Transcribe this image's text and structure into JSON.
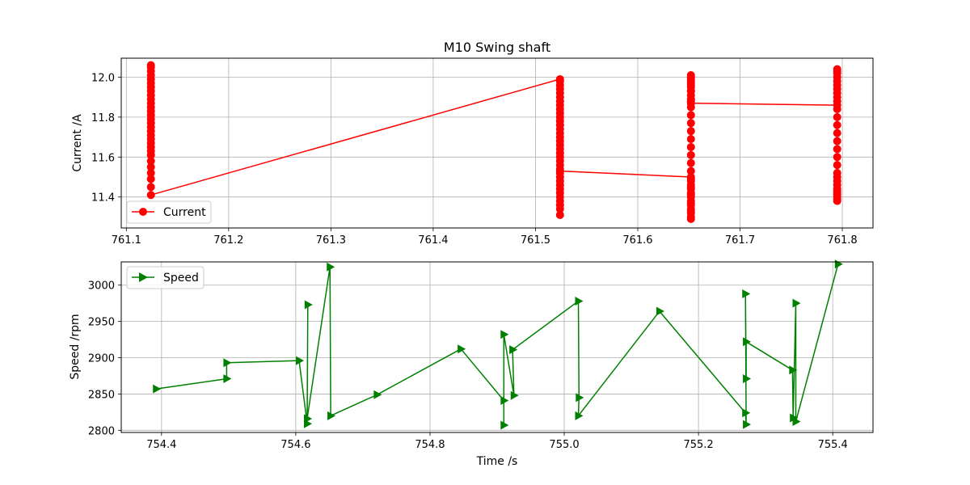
{
  "chart_data": [
    {
      "type": "line",
      "title": "M10 Swing shaft",
      "xlabel": "",
      "ylabel": "Current /A",
      "xlim": [
        761.095,
        761.83
      ],
      "ylim": [
        11.245,
        12.095
      ],
      "xticks": [
        "761.1",
        "761.2",
        "761.3",
        "761.4",
        "761.5",
        "761.6",
        "761.7",
        "761.8"
      ],
      "yticks": [
        "11.4",
        "11.6",
        "11.8",
        "12.0"
      ],
      "grid": true,
      "legend_position": "lower-left",
      "series": [
        {
          "name": "Current",
          "color": "#ff0000",
          "marker": "circle",
          "x": [
            761.124,
            761.124,
            761.124,
            761.124,
            761.124,
            761.124,
            761.124,
            761.124,
            761.124,
            761.124,
            761.124,
            761.124,
            761.124,
            761.124,
            761.124,
            761.124,
            761.124,
            761.124,
            761.124,
            761.124,
            761.124,
            761.124,
            761.124,
            761.124,
            761.124,
            761.124,
            761.124,
            761.124,
            761.124,
            761.124,
            761.524,
            761.524,
            761.524,
            761.524,
            761.524,
            761.524,
            761.524,
            761.524,
            761.524,
            761.524,
            761.524,
            761.524,
            761.524,
            761.524,
            761.524,
            761.524,
            761.524,
            761.524,
            761.524,
            761.524,
            761.524,
            761.524,
            761.524,
            761.524,
            761.524,
            761.524,
            761.524,
            761.524,
            761.524,
            761.524,
            761.524,
            761.524,
            761.524,
            761.524,
            761.524,
            761.524,
            761.652,
            761.652,
            761.652,
            761.652,
            761.652,
            761.652,
            761.652,
            761.652,
            761.652,
            761.652,
            761.652,
            761.652,
            761.652,
            761.652,
            761.652,
            761.652,
            761.652,
            761.652,
            761.652,
            761.652,
            761.652,
            761.652,
            761.652,
            761.652,
            761.652,
            761.652,
            761.652,
            761.652,
            761.652,
            761.652,
            761.652,
            761.652,
            761.652,
            761.652,
            761.652,
            761.652,
            761.652,
            761.652,
            761.652,
            761.652,
            761.795,
            761.795,
            761.795,
            761.795,
            761.795,
            761.795,
            761.795,
            761.795,
            761.795,
            761.795,
            761.795,
            761.795,
            761.795,
            761.795,
            761.795,
            761.795,
            761.795,
            761.795,
            761.795,
            761.795,
            761.795,
            761.795,
            761.795,
            761.795,
            761.795,
            761.795,
            761.795,
            761.795,
            761.795,
            761.795
          ],
          "y": [
            12.06,
            12.05,
            12.03,
            12.01,
            11.99,
            11.97,
            11.95,
            11.93,
            11.91,
            11.89,
            11.87,
            11.85,
            11.83,
            11.81,
            11.79,
            11.77,
            11.75,
            11.73,
            11.71,
            11.69,
            11.67,
            11.65,
            11.63,
            11.61,
            11.58,
            11.55,
            11.52,
            11.49,
            11.45,
            11.41,
            11.99,
            11.98,
            11.96,
            11.94,
            11.92,
            11.9,
            11.88,
            11.86,
            11.84,
            11.82,
            11.8,
            11.78,
            11.76,
            11.74,
            11.72,
            11.7,
            11.68,
            11.66,
            11.64,
            11.62,
            11.6,
            11.58,
            11.56,
            11.54,
            11.52,
            11.5,
            11.48,
            11.46,
            11.44,
            11.42,
            11.4,
            11.38,
            11.36,
            11.34,
            11.31,
            11.53,
            11.5,
            11.48,
            11.46,
            11.44,
            11.42,
            11.4,
            11.38,
            11.36,
            11.34,
            11.32,
            11.29,
            11.3,
            11.33,
            11.37,
            11.41,
            11.45,
            11.49,
            11.53,
            11.57,
            11.61,
            11.65,
            11.69,
            11.73,
            11.77,
            11.81,
            11.85,
            11.89,
            11.93,
            11.96,
            11.98,
            12.0,
            12.01,
            11.99,
            11.97,
            11.95,
            11.93,
            11.91,
            11.89,
            11.88,
            11.87,
            11.86,
            11.88,
            11.9,
            11.92,
            11.94,
            11.96,
            11.98,
            12.0,
            12.02,
            12.04,
            12.03,
            11.84,
            11.8,
            11.76,
            11.72,
            11.68,
            11.64,
            11.6,
            11.56,
            11.52,
            11.5,
            11.48,
            11.46,
            11.44,
            11.42,
            11.4,
            11.38,
            11.39,
            11.41,
            11.43
          ]
        }
      ]
    },
    {
      "type": "line",
      "title": "",
      "xlabel": "Time /s",
      "ylabel": "Speed /rpm",
      "xlim": [
        754.34,
        755.46
      ],
      "ylim": [
        2797,
        3032
      ],
      "xticks": [
        "754.4",
        "754.6",
        "754.8",
        "755.0",
        "755.2",
        "755.4"
      ],
      "yticks": [
        "2800",
        "2850",
        "2900",
        "2950",
        "3000"
      ],
      "grid": true,
      "legend_position": "upper-left",
      "series": [
        {
          "name": "Speed",
          "color": "#008000",
          "marker": "triangle-right",
          "x": [
            754.392,
            754.497,
            754.497,
            754.605,
            754.617,
            754.618,
            754.617,
            754.651,
            754.652,
            754.721,
            754.846,
            754.91,
            754.91,
            754.91,
            754.925,
            754.923,
            755.021,
            755.022,
            755.021,
            755.142,
            755.27,
            755.271,
            755.27,
            755.271,
            755.271,
            755.34,
            755.341,
            755.345,
            755.345,
            755.408
          ],
          "y": [
            2857,
            2871,
            2893,
            2896,
            2809,
            2973,
            2816,
            3025,
            2820,
            2849,
            2912,
            2841,
            2807,
            2932,
            2848,
            2911,
            2978,
            2845,
            2820,
            2964,
            2824,
            2808,
            2988,
            2871,
            2922,
            2883,
            2817,
            2975,
            2812,
            3029
          ]
        }
      ]
    }
  ]
}
